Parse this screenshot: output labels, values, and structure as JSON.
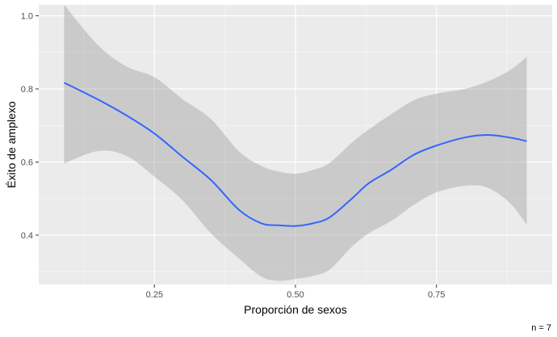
{
  "chart_data": {
    "type": "line",
    "title": "",
    "xlabel": "Proporción de sexos",
    "ylabel": "Éxito de amplexo",
    "caption": "n = 7",
    "xlim": [
      0.045,
      0.955
    ],
    "ylim": [
      0.265,
      1.03
    ],
    "x_ticks": [
      0.25,
      0.5,
      0.75
    ],
    "x_tick_labels": [
      "0.25",
      "0.50",
      "0.75"
    ],
    "y_ticks": [
      0.4,
      0.6,
      0.8,
      1.0
    ],
    "y_tick_labels": [
      "0.4",
      "0.6",
      "0.8",
      "1.0"
    ],
    "grid": true,
    "legend": "none",
    "series": [
      {
        "kind": "smooth",
        "x": [
          0.09,
          0.15,
          0.2,
          0.25,
          0.3,
          0.35,
          0.4,
          0.44,
          0.47,
          0.5,
          0.53,
          0.56,
          0.6,
          0.63,
          0.67,
          0.71,
          0.75,
          0.8,
          0.84,
          0.88,
          0.91
        ],
        "y": [
          0.817,
          0.771,
          0.728,
          0.678,
          0.614,
          0.551,
          0.469,
          0.432,
          0.427,
          0.425,
          0.432,
          0.448,
          0.5,
          0.542,
          0.579,
          0.62,
          0.645,
          0.667,
          0.674,
          0.667,
          0.657
        ],
        "ymin": [
          0.596,
          0.63,
          0.617,
          0.56,
          0.495,
          0.405,
          0.336,
          0.286,
          0.275,
          0.28,
          0.288,
          0.305,
          0.368,
          0.405,
          0.439,
          0.483,
          0.517,
          0.535,
          0.53,
          0.488,
          0.428
        ],
        "ymax": [
          1.03,
          0.92,
          0.862,
          0.832,
          0.772,
          0.718,
          0.629,
          0.589,
          0.574,
          0.568,
          0.578,
          0.597,
          0.653,
          0.689,
          0.731,
          0.769,
          0.787,
          0.8,
          0.82,
          0.851,
          0.888
        ]
      }
    ],
    "colors": {
      "line": "#3366ff",
      "ribbon": "#999999",
      "panel": "#ebebeb",
      "grid_major": "#ffffff",
      "grid_minor": "#f5f5f5",
      "tick": "#333333"
    }
  }
}
